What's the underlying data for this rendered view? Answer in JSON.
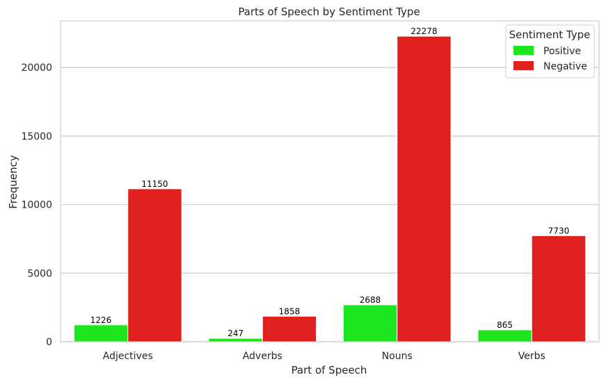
{
  "chart_data": {
    "type": "bar",
    "title": "Parts of Speech by Sentiment Type",
    "xlabel": "Part of Speech",
    "ylabel": "Frequency",
    "categories": [
      "Adjectives",
      "Adverbs",
      "Nouns",
      "Verbs"
    ],
    "series": [
      {
        "name": "Positive",
        "color": "#1ee61e",
        "values": [
          1226,
          247,
          2688,
          865
        ]
      },
      {
        "name": "Negative",
        "color": "#e01f1f",
        "values": [
          11150,
          1858,
          22278,
          7730
        ]
      }
    ],
    "ylim": [
      0,
      23400
    ],
    "yticks": [
      0,
      5000,
      10000,
      15000,
      20000
    ],
    "grid": true,
    "legend": {
      "title": "Sentiment Type",
      "position": "top-right"
    }
  }
}
